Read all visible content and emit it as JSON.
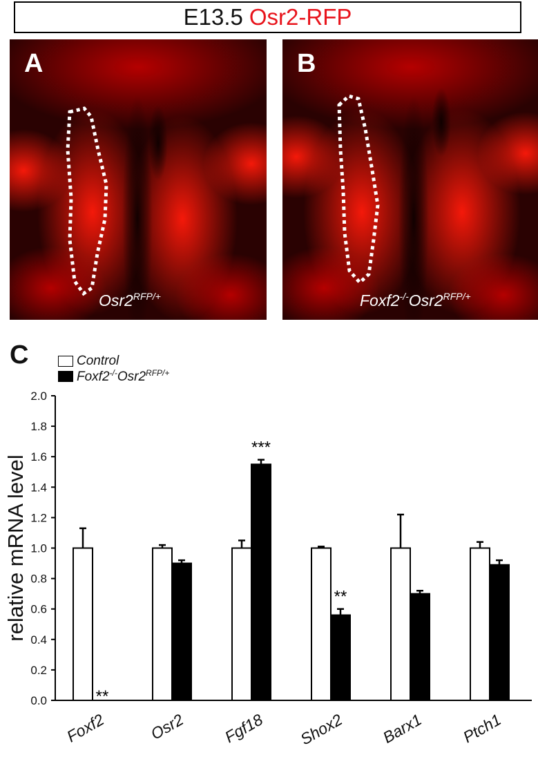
{
  "header": {
    "title_stage": "E13.5",
    "title_reporter": "Osr2-RFP"
  },
  "panels": [
    {
      "letter": "A",
      "caption_base": "Osr2",
      "caption_sup": "RFP/+"
    },
    {
      "letter": "B",
      "caption_base": "Foxf2",
      "caption_sup1": "-/-",
      "caption_mid": "Osr2",
      "caption_sup": "RFP/+"
    }
  ],
  "colors": {
    "title_red": "#e8141c",
    "tissue_red": "#d80000",
    "control_fill": "#ffffff",
    "mutant_fill": "#000000"
  },
  "chart_data": {
    "type": "bar",
    "panel_letter": "C",
    "ylabel": "relative mRNA level",
    "ylim": [
      0,
      2.0
    ],
    "yticks": [
      "0.0",
      "0.2",
      "0.4",
      "0.6",
      "0.8",
      "1.0",
      "1.2",
      "1.4",
      "1.6",
      "1.8",
      "2.0"
    ],
    "categories": [
      "Foxf2",
      "Osr2",
      "Fgf18",
      "Shox2",
      "Barx1",
      "Ptch1"
    ],
    "legend": {
      "control": "Control",
      "mutant_base": "Foxf2",
      "mutant_sup1": "-/-",
      "mutant_mid": "Osr2",
      "mutant_sup2": "RFP/+"
    },
    "series": [
      {
        "name": "Control",
        "values": [
          1.0,
          1.0,
          1.0,
          1.0,
          1.0,
          1.0
        ],
        "errors": [
          0.13,
          0.02,
          0.05,
          0.01,
          0.22,
          0.04
        ]
      },
      {
        "name": "Foxf2-/-Osr2RFP/+",
        "values": [
          0.0,
          0.9,
          1.55,
          0.56,
          0.7,
          0.89
        ],
        "errors": [
          0.0,
          0.02,
          0.03,
          0.04,
          0.02,
          0.03
        ]
      }
    ],
    "annotations": [
      "**",
      "",
      "***",
      "**",
      "",
      ""
    ]
  }
}
